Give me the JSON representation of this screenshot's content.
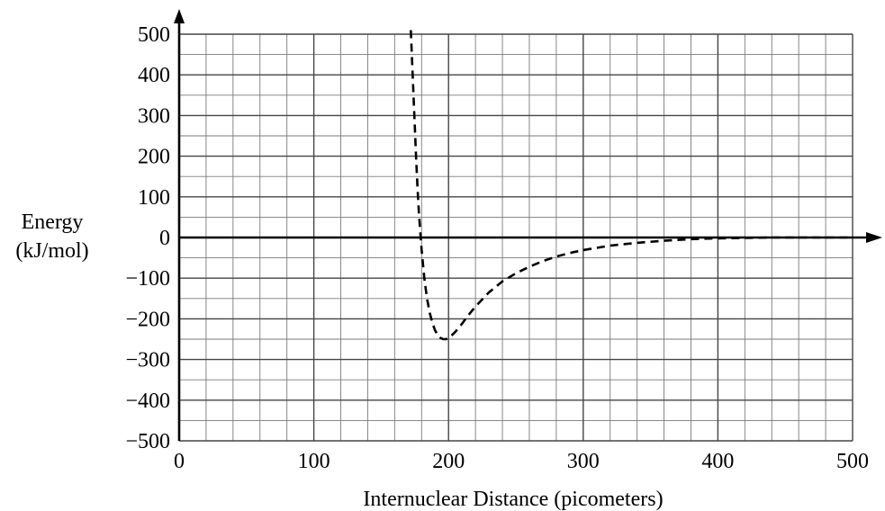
{
  "chart_data": {
    "type": "line",
    "title": "",
    "xlabel": "Internuclear Distance (picometers)",
    "ylabel_line1": "Energy",
    "ylabel_line2": "(kJ/mol)",
    "xlim": [
      0,
      500
    ],
    "ylim": [
      -500,
      500
    ],
    "x_major_ticks": [
      0,
      100,
      200,
      300,
      400,
      500
    ],
    "x_tick_labels": [
      "0",
      "100",
      "200",
      "300",
      "400",
      "500"
    ],
    "y_major_ticks": [
      500,
      400,
      300,
      200,
      100,
      0,
      -100,
      -200,
      -300,
      -400,
      -500
    ],
    "y_tick_labels": [
      "500",
      "400",
      "300",
      "200",
      "100",
      "0",
      "−100",
      "−200",
      "−300",
      "−400",
      "−500"
    ],
    "grid": true,
    "grid_x_step": 20,
    "grid_y_step": 50,
    "line_style": "dashed",
    "series": [
      {
        "x": [
          172,
          173,
          174,
          175,
          176,
          177,
          178,
          179,
          180,
          182,
          184,
          186,
          188,
          190,
          192,
          194,
          196,
          198,
          200,
          205,
          210,
          215,
          220,
          230,
          240,
          250,
          260,
          270,
          280,
          290,
          300,
          320,
          340,
          360,
          380,
          400,
          420,
          440,
          460,
          480,
          500
        ],
        "y": [
          510,
          430,
          350,
          270,
          190,
          120,
          60,
          15,
          -30,
          -100,
          -150,
          -185,
          -210,
          -228,
          -240,
          -247,
          -250,
          -250,
          -248,
          -232,
          -212,
          -190,
          -170,
          -135,
          -108,
          -88,
          -72,
          -58,
          -47,
          -38,
          -31,
          -20,
          -13,
          -8,
          -4,
          -2,
          -1,
          0,
          0,
          0,
          0
        ]
      }
    ]
  }
}
